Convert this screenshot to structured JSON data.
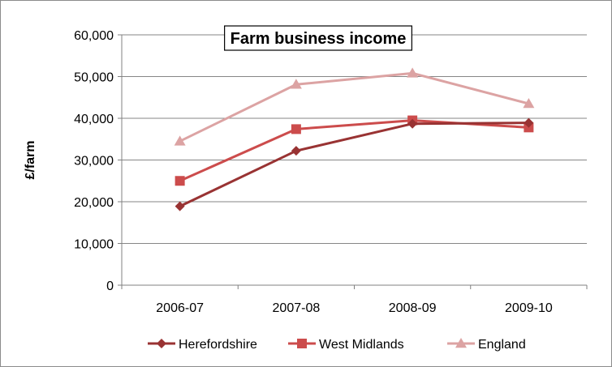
{
  "chart_data": {
    "type": "line",
    "title": "Farm business income",
    "xlabel": "",
    "ylabel": "£/farm",
    "categories": [
      "2006-07",
      "2007-08",
      "2008-09",
      "2009-10"
    ],
    "ylim": [
      0,
      60000
    ],
    "yticks": [
      0,
      10000,
      20000,
      30000,
      40000,
      50000,
      60000
    ],
    "ytick_labels": [
      "0",
      "10,000",
      "20,000",
      "30,000",
      "40,000",
      "50,000",
      "60,000"
    ],
    "grid": "horizontal",
    "legend_position": "bottom",
    "series": [
      {
        "name": "Herefordshire",
        "values": [
          18900,
          32200,
          38700,
          38900
        ],
        "color": "#993333",
        "marker": "diamond"
      },
      {
        "name": "West Midlands",
        "values": [
          25000,
          37400,
          39500,
          37800
        ],
        "color": "#cc4c4c",
        "marker": "square"
      },
      {
        "name": "England",
        "values": [
          34500,
          48100,
          50800,
          43500
        ],
        "color": "#dca3a3",
        "marker": "triangle"
      }
    ]
  }
}
